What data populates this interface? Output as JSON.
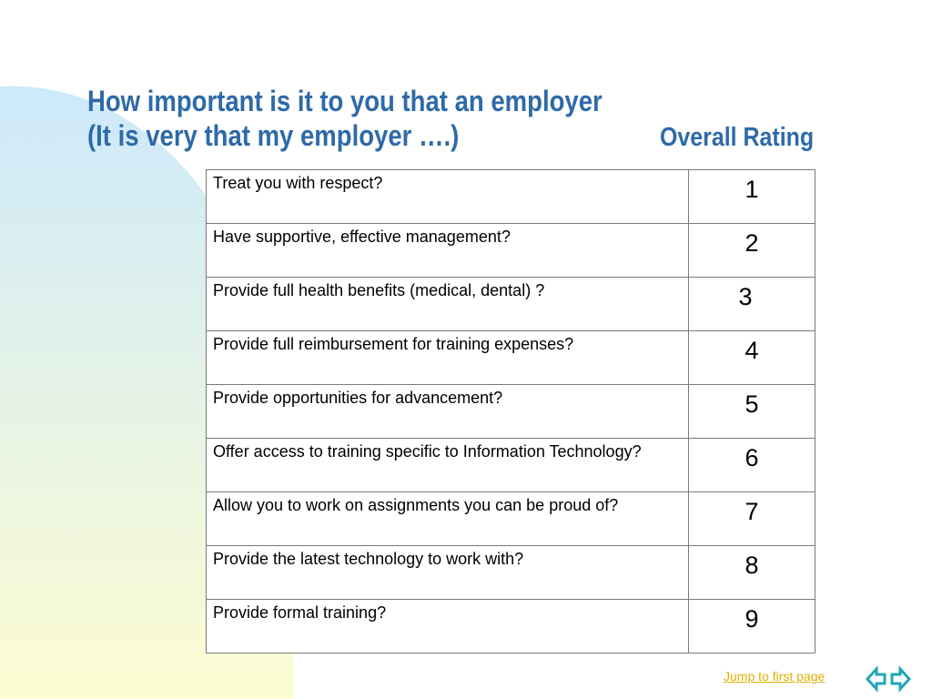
{
  "slide": {
    "title_lines": [
      "How important is it to you that an employer",
      "(It is very that my employer ….)"
    ],
    "column_heading": "Overall Rating",
    "rows": [
      {
        "question": "Treat you with respect?",
        "rating": "1"
      },
      {
        "question": "Have supportive, effective management?",
        "rating": "2"
      },
      {
        "question": "Provide full health benefits (medical, dental) ?",
        "rating": "3"
      },
      {
        "question": "Provide full reimbursement for training expenses?",
        "rating": "4"
      },
      {
        "question": "Provide opportunities for advancement?",
        "rating": "5"
      },
      {
        "question": "Offer access to training specific to Information Technology?",
        "rating": "6"
      },
      {
        "question": "Allow you to work on assignments you can be proud of?",
        "rating": "7"
      },
      {
        "question": "Provide the latest technology to work with?",
        "rating": "8"
      },
      {
        "question": "Provide formal training?",
        "rating": "9"
      }
    ]
  },
  "footer": {
    "link_text": "Jump to first page",
    "nav_icon": "double-arrow-nav-icon"
  },
  "colors": {
    "title": "#2e6aa8",
    "link": "#e0b000",
    "nav_arrows": "#1fa6b8",
    "background_gradient_top": "#cde9fb",
    "background_gradient_bottom": "#fdfcd2",
    "table_border": "#7a7a7a"
  }
}
